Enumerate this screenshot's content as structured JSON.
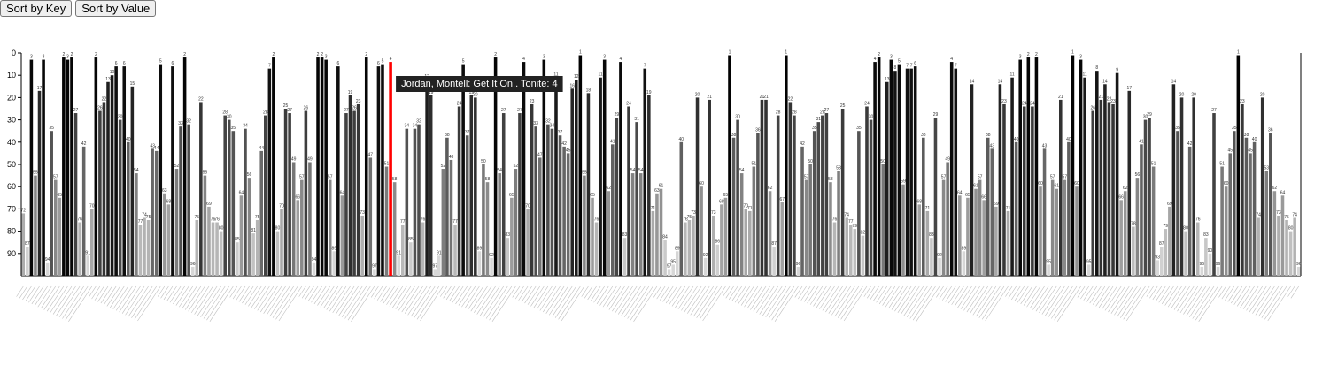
{
  "controls": {
    "sort_key_label": "Sort by Key",
    "sort_value_label": "Sort by Value"
  },
  "tooltip": {
    "text": "Jordan, Montell: Get It On.. Tonite: 4"
  },
  "colors": {
    "highlight": "#ff0000",
    "tooltip_bg": "#222222"
  },
  "chart_data": {
    "type": "bar",
    "title": "",
    "xlabel": "",
    "ylabel": "",
    "y_axis": "inverted",
    "ylim": [
      0,
      100
    ],
    "y_ticks": [
      0,
      10,
      20,
      30,
      40,
      50,
      60,
      70,
      80,
      90
    ],
    "x_tick_labels": "unreadable",
    "color_encoding": "darker = better rank",
    "highlighted_value": 4,
    "values": [
      72,
      87,
      3,
      55,
      17,
      3,
      94,
      35,
      57,
      65,
      2,
      3,
      2,
      27,
      76,
      42,
      91,
      70,
      2,
      26,
      22,
      13,
      10,
      6,
      30,
      6,
      40,
      15,
      54,
      77,
      74,
      75,
      43,
      44,
      5,
      63,
      68,
      6,
      52,
      33,
      2,
      32,
      96,
      75,
      22,
      55,
      69,
      76,
      76,
      80,
      28,
      30,
      35,
      85,
      64,
      34,
      56,
      81,
      75,
      44,
      28,
      7,
      2,
      80,
      70,
      25,
      27,
      49,
      66,
      57,
      26,
      49,
      94,
      2,
      2,
      3,
      57,
      89,
      6,
      64,
      27,
      19,
      26,
      23,
      73,
      2,
      47,
      97,
      6,
      5,
      51,
      4,
      58,
      91,
      77,
      34,
      85,
      34,
      32,
      76,
      12,
      19,
      97,
      91,
      52,
      38,
      48,
      77,
      24,
      5,
      37,
      19,
      20,
      89,
      50,
      58,
      92,
      2,
      54,
      27,
      83,
      65,
      52,
      27,
      4,
      70,
      23,
      33,
      47,
      3,
      32,
      34,
      11,
      37,
      42,
      45,
      16,
      12,
      1,
      55,
      18,
      65,
      76,
      11,
      3,
      62,
      41,
      29,
      4,
      83,
      24,
      54,
      31,
      54,
      7,
      19,
      71,
      63,
      61,
      84,
      97,
      95,
      89,
      40,
      76,
      75,
      73,
      20,
      60,
      92,
      21,
      73,
      86,
      68,
      65,
      1,
      38,
      30,
      54,
      70,
      71,
      51,
      36,
      21,
      21,
      62,
      87,
      28,
      67,
      1,
      22,
      28,
      96,
      42,
      57,
      50,
      35,
      31,
      28,
      27,
      58,
      76,
      53,
      25,
      74,
      77,
      79,
      35,
      82,
      24,
      30,
      4,
      2,
      50,
      13,
      3,
      8,
      5,
      59,
      7,
      7,
      6,
      68,
      38,
      71,
      83,
      29,
      92,
      57,
      49,
      4,
      7,
      64,
      89,
      65,
      14,
      61,
      57,
      66,
      38,
      43,
      69,
      14,
      23,
      71,
      11,
      40,
      3,
      24,
      2,
      24,
      2,
      60,
      43,
      95,
      57,
      61,
      21,
      57,
      40,
      1,
      60,
      3,
      11,
      95,
      26,
      8,
      21,
      14,
      22,
      23,
      9,
      66,
      62,
      17,
      78,
      56,
      41,
      30,
      29,
      51,
      93,
      87,
      79,
      69,
      14,
      35,
      20,
      80,
      42,
      20,
      76,
      96,
      83,
      90,
      27,
      96,
      51,
      60,
      45,
      35,
      1,
      23,
      38,
      45,
      40,
      74,
      20,
      53,
      36,
      62,
      73,
      64,
      75,
      80,
      74,
      96
    ]
  }
}
